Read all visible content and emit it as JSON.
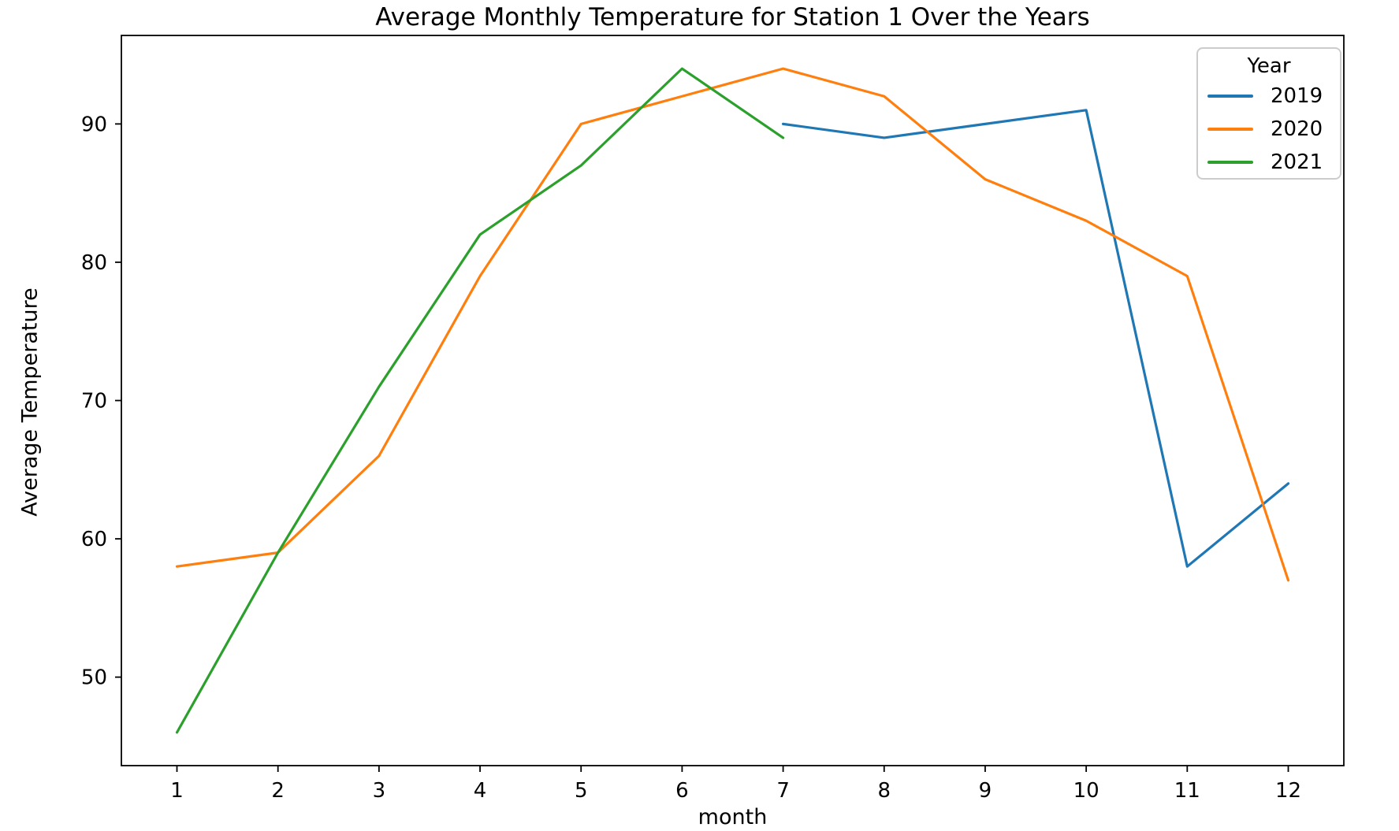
{
  "chart_data": {
    "type": "line",
    "title": "Average Monthly Temperature for Station 1 Over the Years",
    "xlabel": "month",
    "ylabel": "Average Temperature",
    "legend_title": "Year",
    "legend_position": "upper right",
    "grid": false,
    "xlim": [
      0.45,
      12.55
    ],
    "ylim": [
      43.6,
      96.4
    ],
    "xticks": [
      1,
      2,
      3,
      4,
      5,
      6,
      7,
      8,
      9,
      10,
      11,
      12
    ],
    "yticks": [
      50,
      60,
      70,
      80,
      90
    ],
    "series": [
      {
        "name": "2019",
        "color": "#1f77b4",
        "x": [
          7,
          8,
          9,
          10,
          11,
          12
        ],
        "values": [
          90,
          89,
          90,
          91,
          58,
          64
        ]
      },
      {
        "name": "2020",
        "color": "#ff7f0e",
        "x": [
          1,
          2,
          3,
          4,
          5,
          6,
          7,
          8,
          9,
          10,
          11,
          12
        ],
        "values": [
          58,
          59,
          66,
          79,
          90,
          92,
          94,
          92,
          86,
          83,
          79,
          57
        ]
      },
      {
        "name": "2021",
        "color": "#2ca02c",
        "x": [
          1,
          2,
          3,
          4,
          5,
          6,
          7
        ],
        "values": [
          46,
          59,
          71,
          82,
          87,
          94,
          89
        ]
      }
    ]
  },
  "colors": {
    "spine": "#000000",
    "tick_text": "#000000",
    "legend_border": "#cccccc",
    "background": "#ffffff"
  }
}
